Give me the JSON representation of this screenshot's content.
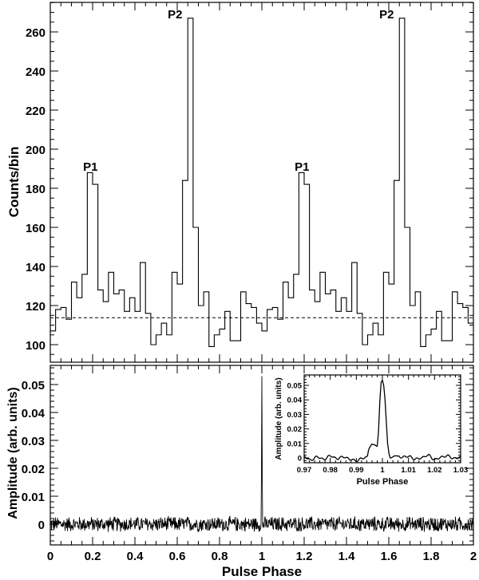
{
  "chart_data": [
    {
      "panel": "top",
      "type": "bar",
      "style": "step-histogram",
      "title": "",
      "xlabel": "",
      "ylabel": "Counts/bin",
      "xlim": [
        0,
        2
      ],
      "ylim": [
        93,
        275
      ],
      "yticks": [
        100,
        120,
        140,
        160,
        180,
        200,
        220,
        240,
        260
      ],
      "xticks_major": [
        0,
        0.2,
        0.4,
        0.6,
        0.8,
        1.0,
        1.2,
        1.4,
        1.6,
        1.8,
        2.0
      ],
      "bin_width": 0.025,
      "bins_per_cycle": 40,
      "cycles_shown": 2,
      "x": [
        0.0,
        0.025,
        0.05,
        0.075,
        0.1,
        0.125,
        0.15,
        0.175,
        0.2,
        0.225,
        0.25,
        0.275,
        0.3,
        0.325,
        0.35,
        0.375,
        0.4,
        0.425,
        0.45,
        0.475,
        0.5,
        0.525,
        0.55,
        0.575,
        0.6,
        0.625,
        0.65,
        0.675,
        0.7,
        0.725,
        0.75,
        0.775,
        0.8,
        0.825,
        0.85,
        0.875,
        0.9,
        0.925,
        0.95,
        0.975
      ],
      "values": [
        107,
        118,
        119,
        113,
        132,
        124,
        136,
        188,
        182,
        128,
        122,
        137,
        126,
        128,
        117,
        124,
        117,
        142,
        116,
        100,
        105,
        111,
        105,
        137,
        131,
        184,
        267,
        160,
        120,
        127,
        99,
        105,
        108,
        117,
        102,
        102,
        127,
        121,
        119,
        111
      ],
      "background_level": 113.8,
      "background_style": "dashed",
      "annotations": [
        {
          "text": "P1",
          "x": 0.19,
          "y": 191
        },
        {
          "text": "P2",
          "x": 0.59,
          "y": 269
        },
        {
          "text": "P1",
          "x": 1.19,
          "y": 191
        },
        {
          "text": "P2",
          "x": 1.59,
          "y": 269
        }
      ]
    },
    {
      "panel": "bottom",
      "type": "line",
      "title": "",
      "xlabel": "Pulse Phase",
      "ylabel": "Amplitude (arb. units)",
      "xlim": [
        0,
        2
      ],
      "ylim": [
        -0.0075,
        0.057
      ],
      "yticks": [
        0,
        0.01,
        0.02,
        0.03,
        0.04,
        0.05
      ],
      "xticks_major": [
        0,
        0.2,
        0.4,
        0.6,
        0.8,
        1.0,
        1.2,
        1.4,
        1.6,
        1.8,
        2.0
      ],
      "series": [
        {
          "name": "cross-correlation",
          "description": "noise around 0 (approx +/-0.003) with a sharp spike at phase 1.0 reaching ~0.053",
          "spike_x": 1.0,
          "spike_y": 0.053,
          "noise_amplitude": 0.003
        }
      ]
    },
    {
      "panel": "inset",
      "type": "line",
      "title": "",
      "xlabel": "Pulse Phase",
      "ylabel": "Amplitude (arb. units)",
      "xlim": [
        0.97,
        1.03
      ],
      "ylim": [
        -0.003,
        0.057
      ],
      "yticks": [
        0,
        0.01,
        0.02,
        0.03,
        0.04,
        0.05
      ],
      "xticks": [
        0.97,
        0.98,
        0.99,
        1.0,
        1.01,
        1.02,
        1.03
      ],
      "x": [
        0.97,
        0.9725,
        0.975,
        0.9775,
        0.98,
        0.9825,
        0.985,
        0.9875,
        0.99,
        0.9925,
        0.994,
        0.995,
        0.996,
        0.997,
        0.998,
        0.9985,
        0.999,
        0.9995,
        1.0,
        1.0005,
        1.001,
        1.0015,
        1.002,
        1.0025,
        1.003,
        1.005,
        1.0075,
        1.01,
        1.0125,
        1.015,
        1.0175,
        1.02,
        1.0225,
        1.025,
        1.0275,
        1.03
      ],
      "values": [
        0.001,
        -0.0015,
        0.0008,
        -0.001,
        0.0015,
        -0.0005,
        0.0008,
        -0.0008,
        -0.002,
        0.0,
        0.0002,
        0.007,
        0.0095,
        0.009,
        0.008,
        0.018,
        0.038,
        0.052,
        0.0535,
        0.05,
        0.04,
        0.025,
        0.01,
        0.003,
        0.0,
        0.0015,
        0.0005,
        0.0012,
        -0.0008,
        0.0,
        0.002,
        -0.0012,
        0.0005,
        0.0015,
        -0.0005,
        0.0008
      ]
    }
  ],
  "axes_labels": {
    "top_ylabel": "Counts/bin",
    "bottom_ylabel": "Amplitude (arb. units)",
    "bottom_xlabel": "Pulse Phase",
    "inset_ylabel": "Amplitude (arb. units)",
    "inset_xlabel": "Pulse Phase"
  },
  "tick_labels": {
    "top_y": [
      "100",
      "120",
      "140",
      "160",
      "180",
      "200",
      "220",
      "240",
      "260"
    ],
    "bottom_y": [
      "0",
      "0.01",
      "0.02",
      "0.03",
      "0.04",
      "0.05"
    ],
    "bottom_x": [
      "0",
      "0.2",
      "0.4",
      "0.6",
      "0.8",
      "1",
      "1.2",
      "1.4",
      "1.6",
      "1.8",
      "2"
    ],
    "inset_y": [
      "0",
      "0.01",
      "0.02",
      "0.03",
      "0.04",
      "0.05"
    ],
    "inset_x": [
      "0.97",
      "0.98",
      "0.99",
      "1",
      "1.01",
      "1.02",
      "1.03"
    ]
  },
  "peak_labels": [
    "P1",
    "P2",
    "P1",
    "P2"
  ]
}
